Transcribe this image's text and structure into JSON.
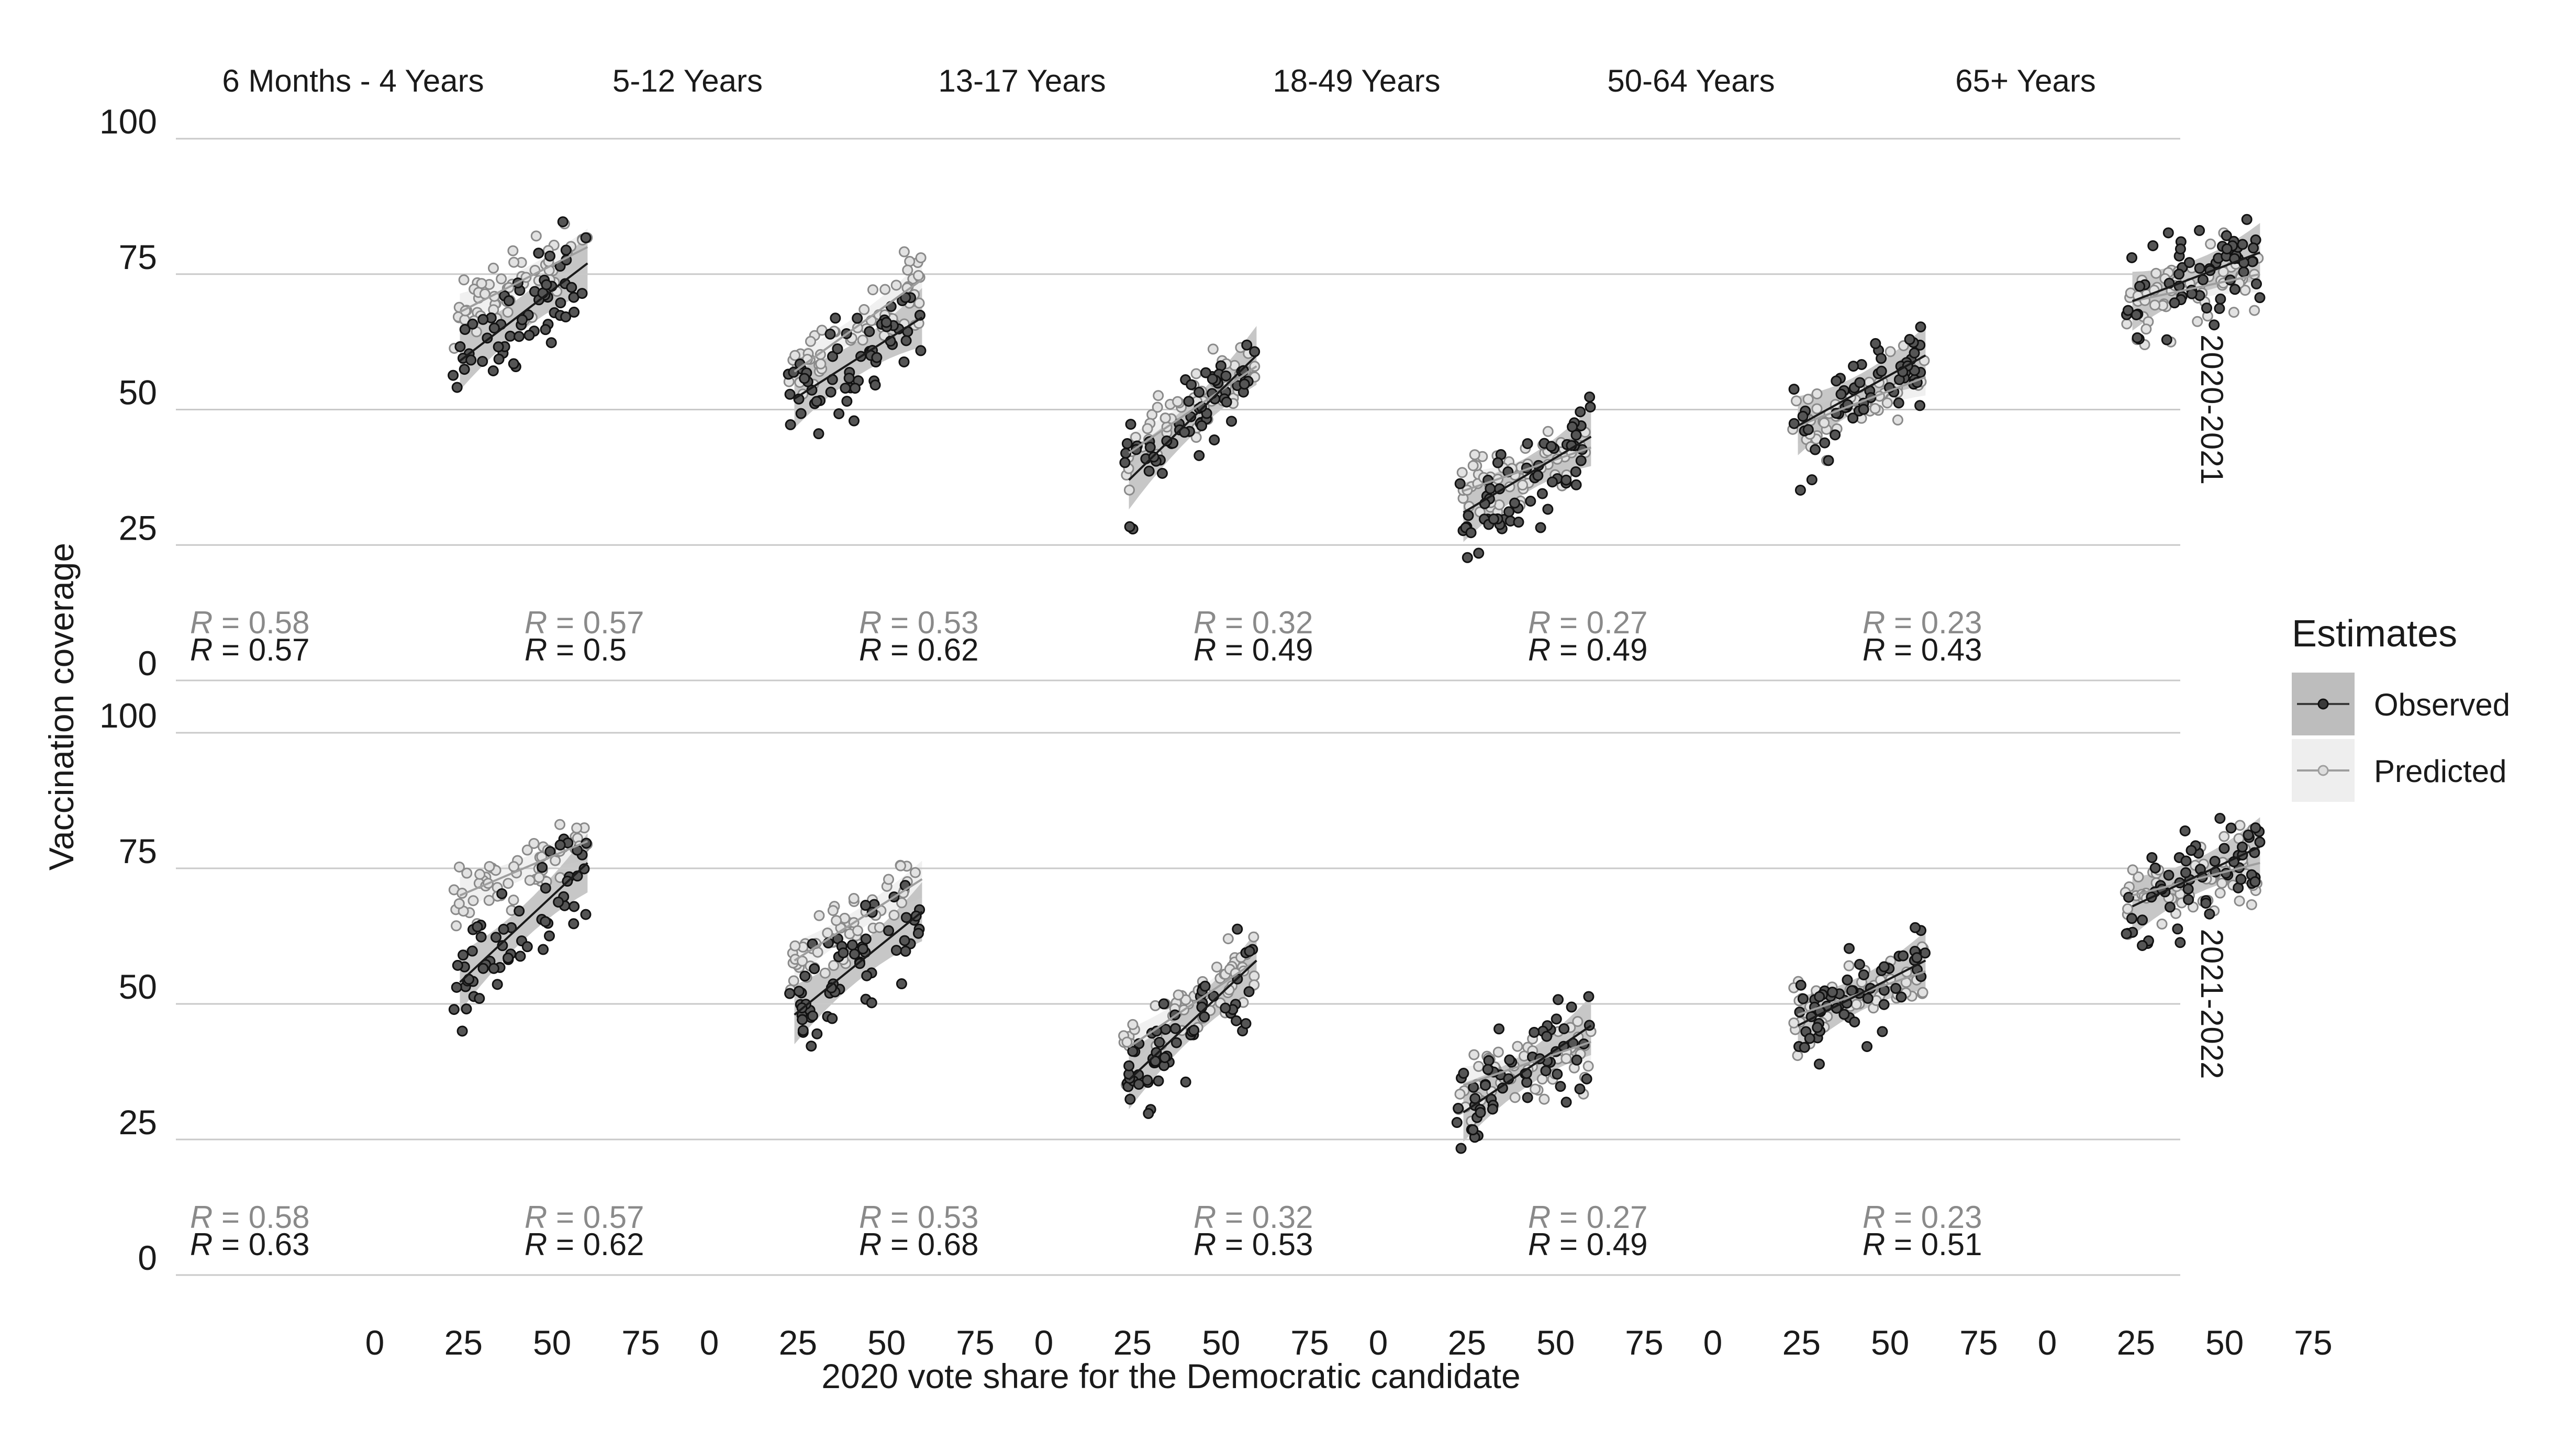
{
  "chart_data": {
    "type": "scatter",
    "title": "",
    "xlabel": "2020 vote share for the Democratic candidate",
    "ylabel": "Vaccination coverage",
    "xlim": [
      0,
      75
    ],
    "ylim": [
      0,
      100
    ],
    "x_ticks": [
      "0",
      "25",
      "50",
      "75"
    ],
    "y_ticks": [
      "0",
      "25",
      "50",
      "75",
      "100"
    ],
    "grid": "horizontal",
    "legend": {
      "title": "Estimates",
      "position": "right",
      "items": [
        {
          "label": "Observed",
          "color": "#3a3a3a",
          "band_color": "#bdbdbd"
        },
        {
          "label": "Predicted",
          "color": "#9e9e9e",
          "band_color": "#eeeeee"
        }
      ]
    },
    "columns": [
      "6 Months - 4 Years",
      "5-12 Years",
      "13-17 Years",
      "18-49 Years",
      "50-64 Years",
      "65+ Years"
    ],
    "rows": [
      "2020-2021",
      "2021-2022"
    ],
    "r_label": "R",
    "series": [
      {
        "name": "Predicted",
        "color": "#9e9e9e",
        "r_values": [
          [
            "0.58",
            "0.57",
            "0.53",
            "0.32",
            "0.27",
            "0.23"
          ],
          [
            "0.58",
            "0.57",
            "0.53",
            "0.32",
            "0.27",
            "0.23"
          ]
        ],
        "fit_lines": [
          [
            [
              [
                24,
                68
              ],
              [
                60,
                80
              ]
            ],
            [
              [
                24,
                57
              ],
              [
                60,
                74
              ]
            ],
            [
              [
                24,
                42
              ],
              [
                60,
                58
              ]
            ],
            [
              [
                24,
                35
              ],
              [
                60,
                43
              ]
            ],
            [
              [
                24,
                47
              ],
              [
                60,
                56
              ]
            ],
            [
              [
                24,
                70
              ],
              [
                60,
                75
              ]
            ]
          ],
          [
            [
              [
                24,
                70
              ],
              [
                60,
                80
              ]
            ],
            [
              [
                24,
                58
              ],
              [
                60,
                73
              ]
            ],
            [
              [
                24,
                42
              ],
              [
                60,
                58
              ]
            ],
            [
              [
                24,
                35
              ],
              [
                60,
                43
              ]
            ],
            [
              [
                24,
                48
              ],
              [
                60,
                56
              ]
            ],
            [
              [
                24,
                70
              ],
              [
                60,
                76
              ]
            ]
          ]
        ]
      },
      {
        "name": "Observed",
        "color": "#3a3a3a",
        "r_values": [
          [
            "0.57",
            "0.5",
            "0.62",
            "0.49",
            "0.49",
            "0.43"
          ],
          [
            "0.63",
            "0.62",
            "0.68",
            "0.53",
            "0.49",
            "0.51"
          ]
        ],
        "fit_lines": [
          [
            [
              [
                24,
                59
              ],
              [
                60,
                77
              ]
            ],
            [
              [
                24,
                52
              ],
              [
                60,
                67
              ]
            ],
            [
              [
                24,
                37
              ],
              [
                60,
                60
              ]
            ],
            [
              [
                24,
                31
              ],
              [
                60,
                45
              ]
            ],
            [
              [
                24,
                47
              ],
              [
                60,
                60
              ]
            ],
            [
              [
                24,
                70
              ],
              [
                60,
                79
              ]
            ]
          ],
          [
            [
              [
                24,
                54
              ],
              [
                60,
                76
              ]
            ],
            [
              [
                24,
                48
              ],
              [
                60,
                67
              ]
            ],
            [
              [
                24,
                36
              ],
              [
                60,
                58
              ]
            ],
            [
              [
                24,
                30
              ],
              [
                60,
                46
              ]
            ],
            [
              [
                24,
                46
              ],
              [
                60,
                58
              ]
            ],
            [
              [
                24,
                68
              ],
              [
                60,
                79
              ]
            ]
          ]
        ]
      }
    ]
  }
}
